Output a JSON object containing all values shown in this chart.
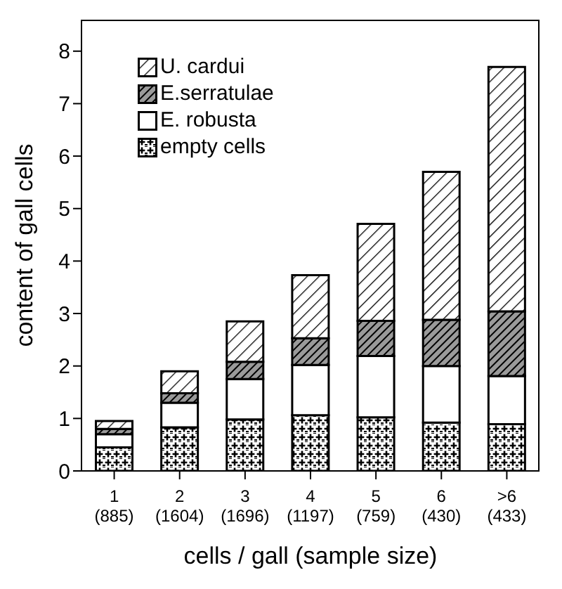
{
  "chart_data": {
    "type": "bar",
    "stacked": true,
    "xlabel": "cells / gall (sample size)",
    "ylabel": "content of gall cells",
    "categories": [
      "1 (885)",
      "2 (1604)",
      "3 (1696)",
      "4 (1197)",
      "5 (759)",
      "6 (430)",
      ">6 (433)"
    ],
    "series": [
      {
        "name": "empty cells",
        "color": "#000000",
        "values": [
          0.45,
          0.83,
          0.98,
          1.06,
          1.02,
          0.92,
          0.89
        ]
      },
      {
        "name": "E. robusta",
        "color": "#000000",
        "values": [
          0.25,
          0.47,
          0.77,
          0.96,
          1.17,
          1.08,
          0.92
        ]
      },
      {
        "name": "E.serratulae",
        "color": "#000000",
        "values": [
          0.1,
          0.18,
          0.33,
          0.51,
          0.67,
          0.88,
          1.23
        ]
      },
      {
        "name": "U. cardui",
        "color": "#000000",
        "values": [
          0.15,
          0.42,
          0.77,
          1.2,
          1.85,
          2.82,
          4.66
        ]
      }
    ],
    "ylim": [
      0,
      8.6
    ],
    "yticks": [
      0,
      1,
      2,
      3,
      4,
      5,
      6,
      7,
      8
    ],
    "grid": false,
    "legend": "top left"
  }
}
